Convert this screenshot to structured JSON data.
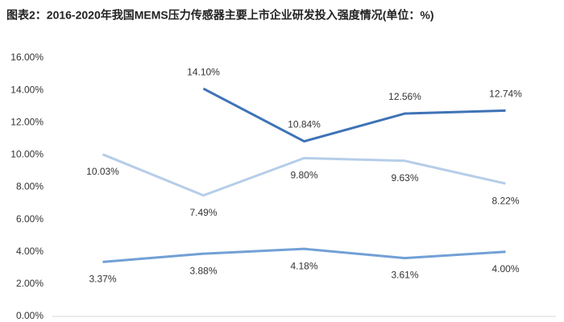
{
  "chart_data": {
    "type": "line",
    "title": "图表2：2016-2020年我国MEMS压力传感器主要上市企业研发投入强度情况(单位：%)",
    "categories": [
      null,
      null,
      null,
      null,
      null
    ],
    "series": [
      {
        "color": "#3e73b6",
        "values": [
          null,
          14.1,
          10.84,
          12.56,
          12.74
        ],
        "value_labels": [
          null,
          "14.10%",
          "10.84%",
          "12.56%",
          "12.74%"
        ]
      },
      {
        "color": "#b6cde9",
        "values": [
          10.03,
          7.49,
          9.8,
          9.63,
          8.22
        ],
        "value_labels": [
          "10.03%",
          "7.49%",
          "9.80%",
          "9.63%",
          "8.22%"
        ]
      },
      {
        "color": "#72a0d6",
        "values": [
          3.37,
          3.88,
          4.18,
          3.61,
          4.0
        ],
        "value_labels": [
          "3.37%",
          "3.88%",
          "4.18%",
          "3.61%",
          "4.00%"
        ]
      }
    ],
    "ylim": [
      0,
      16
    ],
    "yticks": [
      {
        "value": 0,
        "label": "0.00%"
      },
      {
        "value": 2,
        "label": "2.00%"
      },
      {
        "value": 4,
        "label": "4.00%"
      },
      {
        "value": 6,
        "label": "6.00%"
      },
      {
        "value": 8,
        "label": "8.00%"
      },
      {
        "value": 10,
        "label": "10.00%"
      },
      {
        "value": 12,
        "label": "12.00%"
      },
      {
        "value": 14,
        "label": "14.00%"
      },
      {
        "value": 16,
        "label": "16.00%"
      }
    ],
    "grid": false
  }
}
